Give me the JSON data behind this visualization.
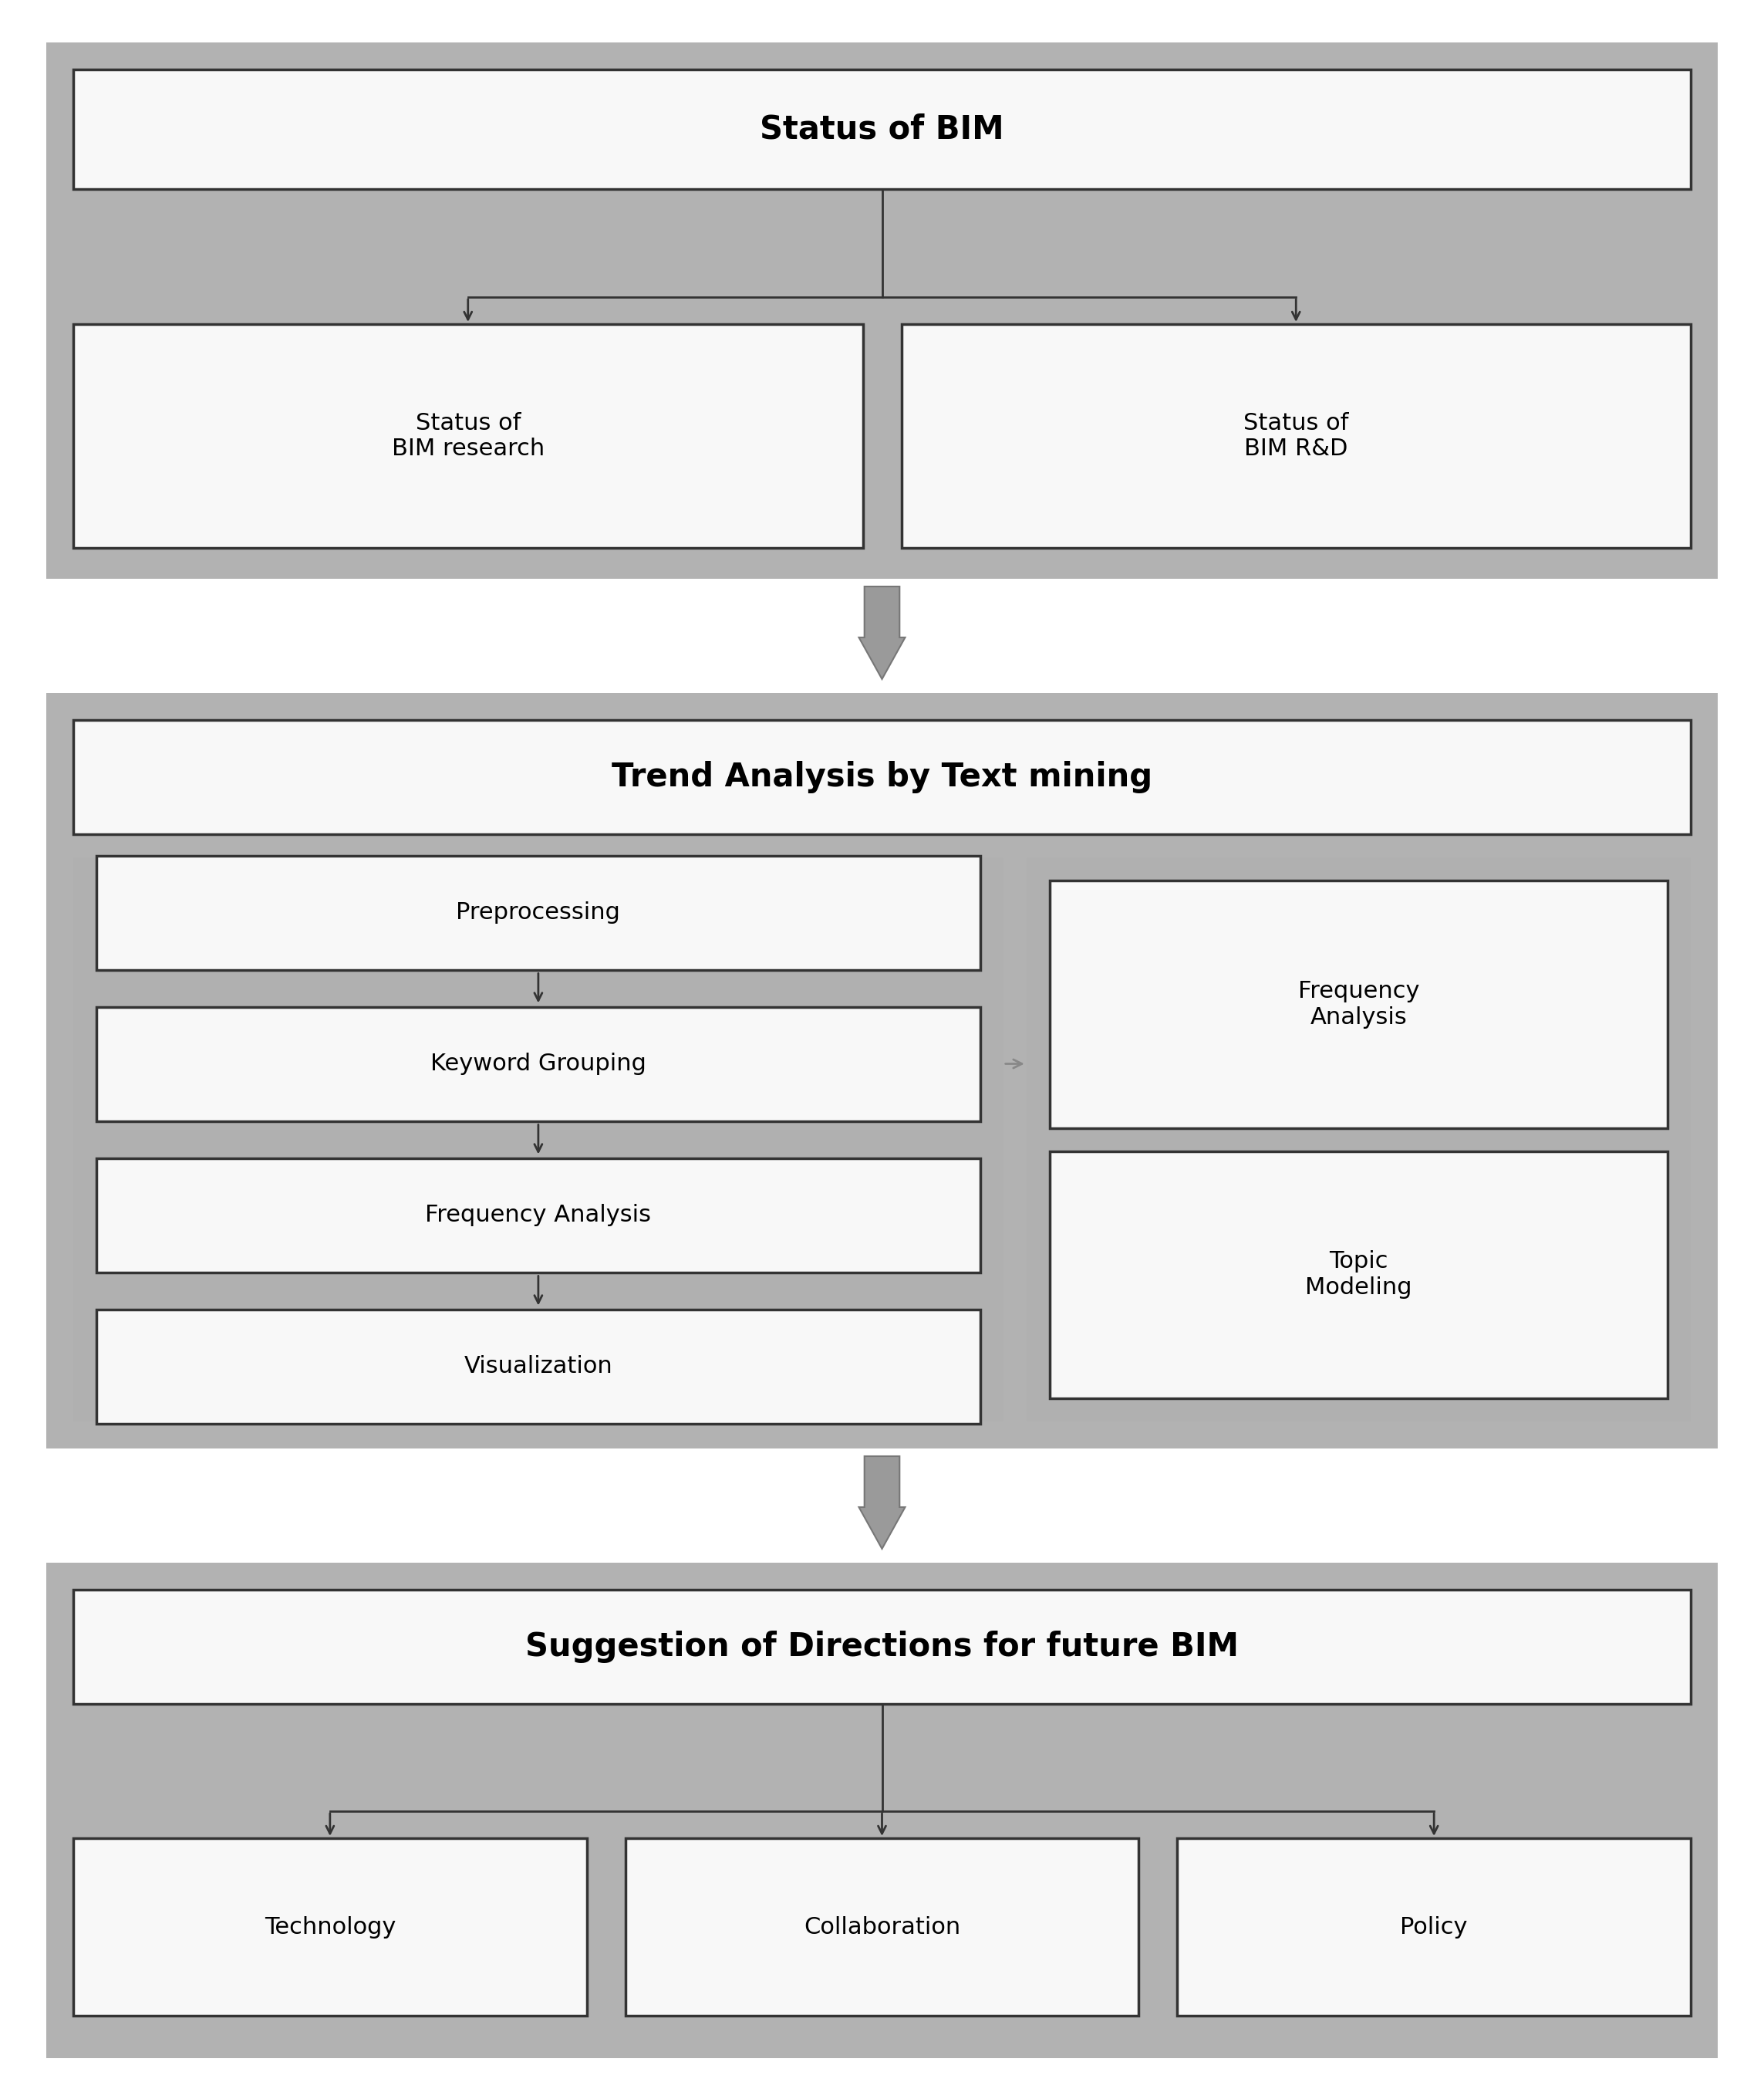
{
  "panel_color": "#b0b0b0",
  "box_fill": "#f8f8f8",
  "box_edge": "#333333",
  "white": "#ffffff",
  "line_color": "#333333",
  "fat_arrow_fill": "#999999",
  "fat_arrow_edge": "#777777",
  "section1_title": "Status of BIM",
  "section1_children": [
    "Status of\nBIM research",
    "Status of\nBIM R&D"
  ],
  "section2_title": "Trend Analysis by Text mining",
  "section2_left": [
    "Preprocessing",
    "Keyword Grouping",
    "Frequency Analysis",
    "Visualization"
  ],
  "section2_right": [
    "Frequency\nAnalysis",
    "Topic\nModeling"
  ],
  "section3_title": "Suggestion of Directions for future BIM",
  "section3_children": [
    "Technology",
    "Collaboration",
    "Policy"
  ],
  "fontsize_header": 30,
  "fontsize_body": 22
}
